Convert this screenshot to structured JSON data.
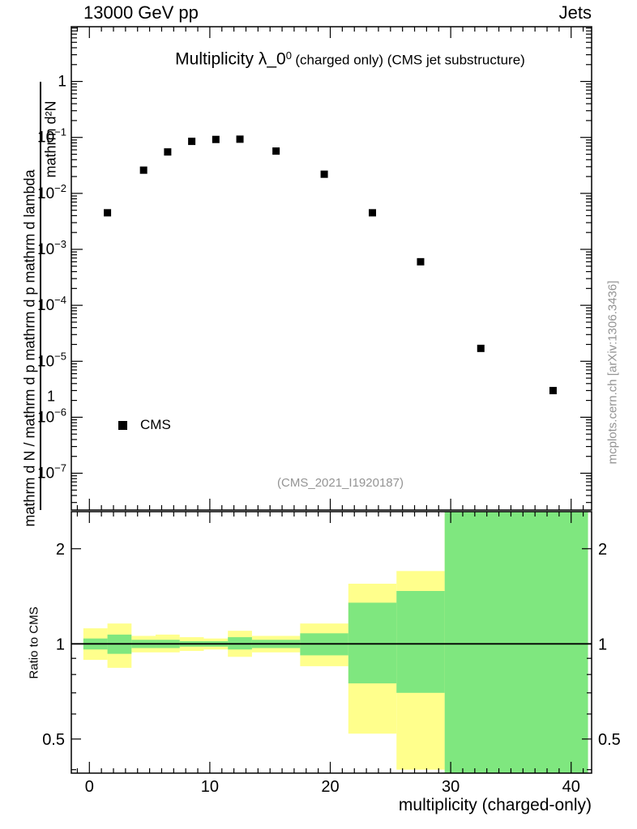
{
  "header": {
    "left": "13000 GeV pp",
    "right": "Jets"
  },
  "plot": {
    "title_main": "Multiplicity λ_0",
    "title_sup": "0",
    "title_suffix": "(charged only) (CMS jet substructure)",
    "legend_label": "CMS",
    "watermark": "(CMS_2021_I1920187)",
    "y_label_inner_top": "mathrm d²N",
    "y_label_inner_bottom": "1",
    "y_label_outer": "mathrm d N / mathrm d p mathrm d p mathrm d lambda",
    "side_note": "mcplots.cern.ch [arXiv:1306.3436]"
  },
  "ratio": {
    "ylabel": "Ratio to CMS",
    "xlabel": "multiplicity (charged-only)"
  },
  "chart_data": [
    {
      "type": "scatter",
      "title": "Multiplicity λ_0⁰ (charged only) (CMS jet substructure)",
      "ylabel": "1 / (mathrm dN / mathrm dp) · mathrm d²N / (mathrm dp mathrm dlambda)",
      "xscale": "linear",
      "yscale": "log",
      "xlim": [
        -1.5,
        41.7
      ],
      "ylim": [
        2.2e-08,
        9.5
      ],
      "xticks_major": [
        0,
        10,
        20,
        30,
        40
      ],
      "ytick_decades": [
        0,
        -1,
        -2,
        -3,
        -4,
        -5,
        -6,
        -7
      ],
      "grid": false,
      "legend_position": "lower-left",
      "series": [
        {
          "name": "CMS",
          "marker": "filled-square",
          "color": "#000000",
          "points": [
            [
              1.5,
              0.0045
            ],
            [
              4.5,
              0.026
            ],
            [
              6.5,
              0.055
            ],
            [
              8.5,
              0.085
            ],
            [
              10.5,
              0.092
            ],
            [
              12.5,
              0.093
            ],
            [
              15.5,
              0.057
            ],
            [
              19.5,
              0.022
            ],
            [
              23.5,
              0.0045
            ],
            [
              27.5,
              0.0006
            ],
            [
              32.5,
              1.7e-05
            ],
            [
              38.5,
              3e-06
            ]
          ]
        }
      ]
    },
    {
      "type": "band-ratio",
      "ylabel": "Ratio to CMS",
      "xlabel": "multiplicity (charged-only)",
      "yscale": "log",
      "xlim": [
        -1.5,
        41.7
      ],
      "ylim": [
        0.39,
        2.62
      ],
      "yticks_major": [
        0.5,
        1,
        2
      ],
      "yticks_minor": [
        0.4,
        0.6,
        0.7,
        0.8,
        0.9
      ],
      "xticks_major": [
        0,
        10,
        20,
        30,
        40
      ],
      "reference_y": 1,
      "band_colors": {
        "outer": "#ffff8c",
        "inner": "#7fe77f"
      },
      "bands": [
        {
          "x1": -0.5,
          "x2": 1.5,
          "outer": [
            0.89,
            1.12
          ],
          "inner": [
            0.96,
            1.04
          ]
        },
        {
          "x1": 1.5,
          "x2": 3.5,
          "outer": [
            0.84,
            1.16
          ],
          "inner": [
            0.93,
            1.07
          ]
        },
        {
          "x1": 3.5,
          "x2": 5.5,
          "outer": [
            0.94,
            1.06
          ],
          "inner": [
            0.97,
            1.03
          ]
        },
        {
          "x1": 5.5,
          "x2": 7.5,
          "outer": [
            0.94,
            1.07
          ],
          "inner": [
            0.97,
            1.03
          ]
        },
        {
          "x1": 7.5,
          "x2": 9.5,
          "outer": [
            0.95,
            1.05
          ],
          "inner": [
            0.98,
            1.02
          ]
        },
        {
          "x1": 9.5,
          "x2": 11.5,
          "outer": [
            0.96,
            1.04
          ],
          "inner": [
            0.98,
            1.02
          ]
        },
        {
          "x1": 11.5,
          "x2": 13.5,
          "outer": [
            0.91,
            1.1
          ],
          "inner": [
            0.96,
            1.05
          ]
        },
        {
          "x1": 13.5,
          "x2": 17.5,
          "outer": [
            0.94,
            1.06
          ],
          "inner": [
            0.97,
            1.03
          ]
        },
        {
          "x1": 17.5,
          "x2": 21.5,
          "outer": [
            0.85,
            1.16
          ],
          "inner": [
            0.92,
            1.08
          ]
        },
        {
          "x1": 21.5,
          "x2": 25.5,
          "outer": [
            0.52,
            1.55
          ],
          "inner": [
            0.75,
            1.35
          ]
        },
        {
          "x1": 25.5,
          "x2": 29.5,
          "outer": [
            0.4,
            1.7
          ],
          "inner": [
            0.7,
            1.47
          ]
        },
        {
          "x1": 29.5,
          "x2": 41.4,
          "outer": [
            0.39,
            2.62
          ],
          "inner": [
            0.39,
            2.62
          ]
        }
      ]
    }
  ]
}
